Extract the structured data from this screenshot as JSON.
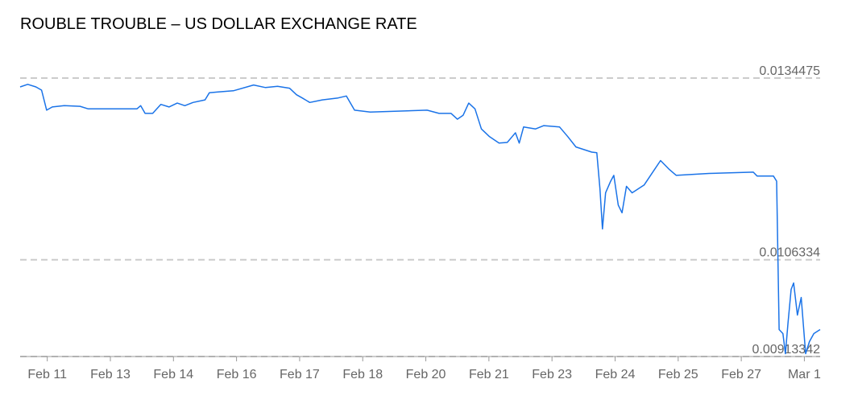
{
  "chart_data": {
    "type": "line",
    "title": "ROUBLE TROUBLE – US DOLLAR EXCHANGE RATE",
    "color": "#1a73e8",
    "grid": true,
    "x": [
      -0.43,
      -0.31,
      -0.18,
      -0.09,
      -0.01,
      0.08,
      0.27,
      0.52,
      0.65,
      1.42,
      1.48,
      1.55,
      1.67,
      1.8,
      1.93,
      2.06,
      2.18,
      2.31,
      2.5,
      2.57,
      2.69,
      2.95,
      3.27,
      3.46,
      3.65,
      3.84,
      3.95,
      4.04,
      4.16,
      4.36,
      4.61,
      4.74,
      4.87,
      5.12,
      6.02,
      6.21,
      6.4,
      6.5,
      6.59,
      6.68,
      6.78,
      6.88,
      7.01,
      7.16,
      7.29,
      7.42,
      7.48,
      7.55,
      7.74,
      7.87,
      8.12,
      8.25,
      8.38,
      8.63,
      8.71,
      8.76,
      8.8,
      8.85,
      8.93,
      8.98,
      9.05,
      9.11,
      9.18,
      9.27,
      9.46,
      9.59,
      9.72,
      9.85,
      9.97,
      10.49,
      11.19,
      11.25,
      11.51,
      11.56,
      11.6,
      11.66,
      11.7,
      11.74,
      11.79,
      11.83,
      11.89,
      11.95,
      12.02,
      12.08,
      12.15,
      12.25
    ],
    "values": [
      0.01331,
      0.01335,
      0.01331,
      0.01326,
      0.01295,
      0.013,
      0.01302,
      0.01301,
      0.01297,
      0.01297,
      0.01302,
      0.0129,
      0.0129,
      0.01304,
      0.013,
      0.01306,
      0.01302,
      0.01307,
      0.01311,
      0.01322,
      0.01323,
      0.01325,
      0.01334,
      0.0133,
      0.01332,
      0.01329,
      0.01319,
      0.01314,
      0.01307,
      0.01311,
      0.01314,
      0.01317,
      0.01295,
      0.01292,
      0.01295,
      0.0129,
      0.0129,
      0.01281,
      0.01287,
      0.01306,
      0.01297,
      0.01266,
      0.01254,
      0.01244,
      0.01245,
      0.0126,
      0.01244,
      0.01269,
      0.01266,
      0.01271,
      0.01269,
      0.01254,
      0.01238,
      0.0123,
      0.01229,
      0.01173,
      0.01111,
      0.01167,
      0.01185,
      0.01194,
      0.01148,
      0.01136,
      0.01177,
      0.01167,
      0.01179,
      0.01198,
      0.01217,
      0.01204,
      0.01194,
      0.01197,
      0.01199,
      0.01193,
      0.01193,
      0.01185,
      0.009551,
      0.009489,
      0.009177,
      0.00965,
      0.010173,
      0.010273,
      0.009775,
      0.010049,
      0.009177,
      0.009364,
      0.009489,
      0.009551
    ],
    "xlim": [
      -0.43,
      12.25
    ],
    "xticks": [
      {
        "value": 0,
        "label": "Feb 11"
      },
      {
        "value": 1,
        "label": "Feb 13"
      },
      {
        "value": 2,
        "label": "Feb 14"
      },
      {
        "value": 3,
        "label": "Feb 16"
      },
      {
        "value": 4,
        "label": "Feb 17"
      },
      {
        "value": 5,
        "label": "Feb 18"
      },
      {
        "value": 6,
        "label": "Feb 20"
      },
      {
        "value": 7,
        "label": "Feb 21"
      },
      {
        "value": 8,
        "label": "Feb 23"
      },
      {
        "value": 9,
        "label": "Feb 24"
      },
      {
        "value": 10,
        "label": "Feb 25"
      },
      {
        "value": 11,
        "label": "Feb 27"
      },
      {
        "value": 12,
        "label": "Mar 1"
      }
    ],
    "ylim": [
      0.00913342,
      0.0134475
    ],
    "yticks": [
      0.0134475,
      0.0106334,
      0.00913342
    ]
  }
}
